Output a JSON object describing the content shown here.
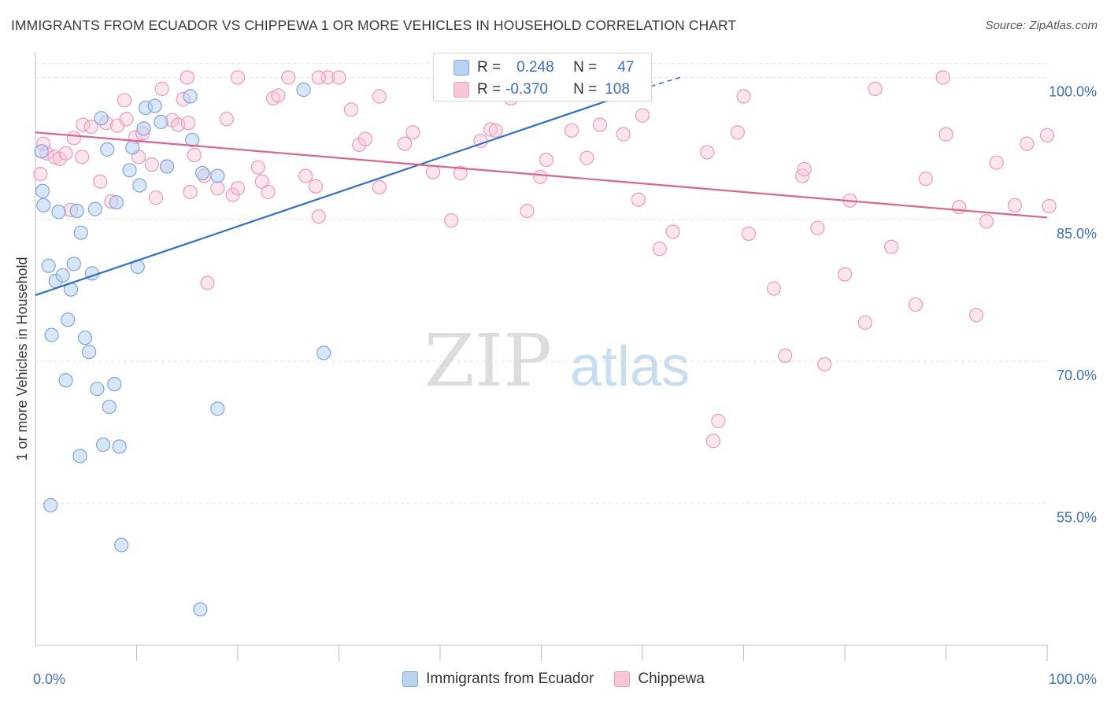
{
  "header": {
    "title": "IMMIGRANTS FROM ECUADOR VS CHIPPEWA 1 OR MORE VEHICLES IN HOUSEHOLD CORRELATION CHART",
    "source": "Source: ZipAtlas.com"
  },
  "watermark": {
    "part1": "ZIP",
    "part2": "atlas"
  },
  "stats": {
    "series1": {
      "r_label": "R =",
      "r_value": "0.248",
      "n_label": "N =",
      "n_value": "47"
    },
    "series2": {
      "r_label": "R =",
      "r_value": "-0.370",
      "n_label": "N =",
      "n_value": "108"
    }
  },
  "colors": {
    "ecuador_fill": "#b8d3f2",
    "ecuador_stroke": "#7ea6dd",
    "ecuador_line": "#2f6fd0",
    "chippewa_fill": "#f8c6d6",
    "chippewa_stroke": "#ee9ab8",
    "chippewa_line": "#e0608e",
    "tick_label": "#3d6fc4",
    "grid": "#e4e4e4"
  },
  "chart_data": {
    "type": "scatter",
    "title": "IMMIGRANTS FROM ECUADOR VS CHIPPEWA 1 OR MORE VEHICLES IN HOUSEHOLD CORRELATION CHART",
    "xlabel": "",
    "ylabel": "1 or more Vehicles in Household",
    "xlim": [
      0,
      100
    ],
    "ylim": [
      40,
      102.7
    ],
    "x_tick_labels": [
      {
        "value": 0,
        "label": "0.0%"
      },
      {
        "value": 100,
        "label": "100.0%"
      }
    ],
    "y_tick_labels": [
      {
        "value": 100,
        "label": "100.0%"
      },
      {
        "value": 85,
        "label": "85.0%"
      },
      {
        "value": 70,
        "label": "70.0%"
      },
      {
        "value": 55,
        "label": "55.0%"
      }
    ],
    "grid": true,
    "legend": "bottom",
    "series": [
      {
        "name": "Immigrants from Ecuador",
        "trend": {
          "x": [
            0,
            60
          ],
          "y": [
            77.0,
            98.8
          ],
          "dashed_to": [
            64,
            100.1
          ]
        },
        "points": [
          [
            0.6,
            92.2
          ],
          [
            0.7,
            88.0
          ],
          [
            0.8,
            86.5
          ],
          [
            1.3,
            80.1
          ],
          [
            2.0,
            78.5
          ],
          [
            2.3,
            85.8
          ],
          [
            2.7,
            79.1
          ],
          [
            3.5,
            77.6
          ],
          [
            3.8,
            80.3
          ],
          [
            4.1,
            85.9
          ],
          [
            4.5,
            83.6
          ],
          [
            5.6,
            79.3
          ],
          [
            5.9,
            86.1
          ],
          [
            1.6,
            72.8
          ],
          [
            3.2,
            74.4
          ],
          [
            4.9,
            72.5
          ],
          [
            5.3,
            71.0
          ],
          [
            3.0,
            68.0
          ],
          [
            6.1,
            67.1
          ],
          [
            7.8,
            67.6
          ],
          [
            7.3,
            65.2
          ],
          [
            6.7,
            61.2
          ],
          [
            8.3,
            61.0
          ],
          [
            4.4,
            60.0
          ],
          [
            1.5,
            54.8
          ],
          [
            8.5,
            50.6
          ],
          [
            16.3,
            43.8
          ],
          [
            6.5,
            95.7
          ],
          [
            7.1,
            92.4
          ],
          [
            9.3,
            90.2
          ],
          [
            9.6,
            92.6
          ],
          [
            10.3,
            88.6
          ],
          [
            10.7,
            94.6
          ],
          [
            10.9,
            96.8
          ],
          [
            11.8,
            97.0
          ],
          [
            12.4,
            95.3
          ],
          [
            13.0,
            90.6
          ],
          [
            15.3,
            98.0
          ],
          [
            15.5,
            93.4
          ],
          [
            16.5,
            89.9
          ],
          [
            18.0,
            89.6
          ],
          [
            8.0,
            86.8
          ],
          [
            10.1,
            80.0
          ],
          [
            26.5,
            98.7
          ],
          [
            59.6,
            100.0
          ],
          [
            28.5,
            70.9
          ],
          [
            18.0,
            65.0
          ]
        ]
      },
      {
        "name": "Chippewa",
        "trend": {
          "x": [
            0,
            100
          ],
          "y": [
            94.2,
            85.2
          ]
        },
        "points": [
          [
            0.5,
            89.8
          ],
          [
            0.8,
            93.0
          ],
          [
            1.1,
            92.0
          ],
          [
            1.9,
            91.6
          ],
          [
            2.4,
            91.4
          ],
          [
            3.0,
            92.0
          ],
          [
            3.5,
            86.0
          ],
          [
            3.8,
            93.6
          ],
          [
            4.6,
            91.6
          ],
          [
            4.7,
            95.0
          ],
          [
            5.5,
            94.8
          ],
          [
            6.4,
            89.0
          ],
          [
            7.0,
            95.2
          ],
          [
            7.5,
            86.9
          ],
          [
            8.1,
            94.9
          ],
          [
            8.8,
            97.6
          ],
          [
            9.0,
            95.6
          ],
          [
            9.9,
            93.7
          ],
          [
            10.2,
            91.6
          ],
          [
            10.6,
            94.1
          ],
          [
            11.5,
            90.8
          ],
          [
            11.9,
            87.3
          ],
          [
            12.5,
            98.8
          ],
          [
            13.0,
            90.6
          ],
          [
            13.5,
            95.5
          ],
          [
            14.1,
            95.0
          ],
          [
            14.6,
            97.7
          ],
          [
            15.1,
            95.2
          ],
          [
            15.3,
            87.9
          ],
          [
            15.7,
            91.8
          ],
          [
            16.7,
            89.6
          ],
          [
            17.0,
            78.3
          ],
          [
            18.0,
            88.3
          ],
          [
            18.9,
            95.6
          ],
          [
            19.5,
            87.6
          ],
          [
            20.0,
            88.3
          ],
          [
            22.0,
            90.5
          ],
          [
            22.4,
            89.0
          ],
          [
            23.0,
            87.9
          ],
          [
            23.5,
            97.8
          ],
          [
            24.0,
            98.1
          ],
          [
            26.7,
            89.6
          ],
          [
            27.7,
            88.5
          ],
          [
            28.0,
            85.3
          ],
          [
            28.9,
            100.0
          ],
          [
            30.0,
            100.0
          ],
          [
            31.2,
            96.6
          ],
          [
            32.0,
            92.9
          ],
          [
            32.6,
            93.5
          ],
          [
            34.0,
            88.4
          ],
          [
            37.3,
            94.2
          ],
          [
            39.3,
            90.0
          ],
          [
            41.1,
            84.9
          ],
          [
            42.0,
            89.9
          ],
          [
            44.0,
            93.3
          ],
          [
            45.0,
            94.5
          ],
          [
            45.5,
            94.4
          ],
          [
            47.0,
            97.8
          ],
          [
            48.6,
            85.9
          ],
          [
            49.9,
            89.5
          ],
          [
            50.5,
            91.3
          ],
          [
            52.3,
            100.0
          ],
          [
            53.0,
            94.4
          ],
          [
            54.5,
            91.5
          ],
          [
            55.8,
            95.0
          ],
          [
            58.1,
            94.0
          ],
          [
            59.6,
            87.1
          ],
          [
            61.7,
            81.9
          ],
          [
            63.0,
            83.7
          ],
          [
            66.4,
            92.1
          ],
          [
            67.0,
            61.6
          ],
          [
            67.5,
            63.7
          ],
          [
            69.4,
            94.2
          ],
          [
            70.5,
            83.5
          ],
          [
            73.0,
            77.7
          ],
          [
            74.1,
            70.6
          ],
          [
            75.8,
            89.6
          ],
          [
            76.0,
            90.3
          ],
          [
            77.3,
            84.1
          ],
          [
            78.0,
            69.7
          ],
          [
            80.0,
            79.2
          ],
          [
            80.5,
            87.0
          ],
          [
            82.0,
            74.1
          ],
          [
            83.0,
            98.8
          ],
          [
            84.6,
            82.1
          ],
          [
            87.0,
            76.0
          ],
          [
            88.0,
            89.3
          ],
          [
            89.7,
            100.0
          ],
          [
            90.0,
            94.0
          ],
          [
            91.3,
            86.3
          ],
          [
            93.0,
            74.9
          ],
          [
            94.0,
            84.8
          ],
          [
            95.0,
            91.0
          ],
          [
            96.8,
            86.5
          ],
          [
            98.0,
            93.0
          ],
          [
            100.0,
            93.9
          ],
          [
            100.2,
            86.4
          ],
          [
            15.0,
            100.0
          ],
          [
            20.0,
            100.0
          ],
          [
            25.0,
            100.0
          ],
          [
            28.0,
            100.0
          ],
          [
            34.0,
            98.0
          ],
          [
            36.5,
            93.0
          ],
          [
            40.0,
            100.0
          ],
          [
            48.0,
            100.0
          ],
          [
            55.0,
            100.0
          ],
          [
            60.0,
            96.0
          ],
          [
            70.0,
            98.0
          ]
        ]
      }
    ]
  }
}
